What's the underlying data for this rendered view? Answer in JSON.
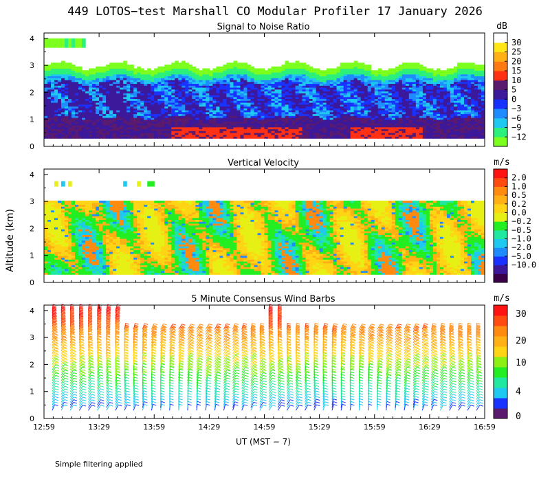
{
  "title": "449 LOTOS−test Marshall CO Modular Profiler 17 January 2026",
  "ylabel": "Altitude (km)",
  "xlabel": "UT  (MST − 7)",
  "footnote": "Simple filtering applied",
  "colors": {
    "snr": [
      "#7cff1c",
      "#2cf07c",
      "#1ec8f0",
      "#1e8cff",
      "#1a32ff",
      "#3c189a",
      "#5a1a6e",
      "#ff3014",
      "#ff7a10",
      "#ffb014",
      "#ffe614",
      "#ffffff"
    ],
    "vv": [
      "#3a0048",
      "#3c189a",
      "#1a32ff",
      "#1e8cff",
      "#1ec8f0",
      "#20e8a0",
      "#22ee22",
      "#e6f014",
      "#ffd414",
      "#ffb014",
      "#ff8a10",
      "#ff4a10",
      "#ff1414"
    ],
    "wind": [
      "#5a1a6e",
      "#1a32ff",
      "#1ec8f0",
      "#20e8a0",
      "#22ee22",
      "#8cf014",
      "#ffd414",
      "#ffb014",
      "#ff8a10",
      "#ff4a10",
      "#ff1414"
    ]
  },
  "chart_data": [
    {
      "type": "heatmap",
      "title": "Signal to Noise Ratio",
      "units": "dB",
      "x_ticks": [
        "12:59",
        "13:29",
        "13:59",
        "14:29",
        "14:59",
        "15:29",
        "15:59",
        "16:29",
        "16:59"
      ],
      "y_ticks": [
        "0",
        "1",
        "2",
        "3",
        "4"
      ],
      "ylim": [
        0,
        4.2
      ],
      "colorbar_labels": [
        "30",
        "25",
        "20",
        "15",
        "10",
        "5",
        "0",
        "−3",
        "−6",
        "−9",
        "−12"
      ]
    },
    {
      "type": "heatmap",
      "title": "Vertical Velocity",
      "units": "m/s",
      "x_ticks": [
        "12:59",
        "13:29",
        "13:59",
        "14:29",
        "14:59",
        "15:29",
        "15:59",
        "16:29",
        "16:59"
      ],
      "y_ticks": [
        "0",
        "1",
        "2",
        "3",
        "4"
      ],
      "ylim": [
        0,
        4.2
      ],
      "colorbar_labels": [
        "2.0",
        "1.0",
        "0.5",
        "0.2",
        "0.0",
        "−0.2",
        "−0.5",
        "−1.0",
        "−2.0",
        "−5.0",
        "−10.0"
      ]
    },
    {
      "type": "scatter",
      "title": "5 Minute Consensus Wind Barbs",
      "units": "m/s",
      "x_ticks": [
        "12:59",
        "13:29",
        "13:59",
        "14:29",
        "14:59",
        "15:29",
        "15:59",
        "16:29",
        "16:59"
      ],
      "y_ticks": [
        "0",
        "1",
        "2",
        "3",
        "4"
      ],
      "ylim": [
        0,
        4.2
      ],
      "colorbar_labels": [
        "30",
        "20",
        "10",
        "4",
        "0"
      ]
    }
  ]
}
